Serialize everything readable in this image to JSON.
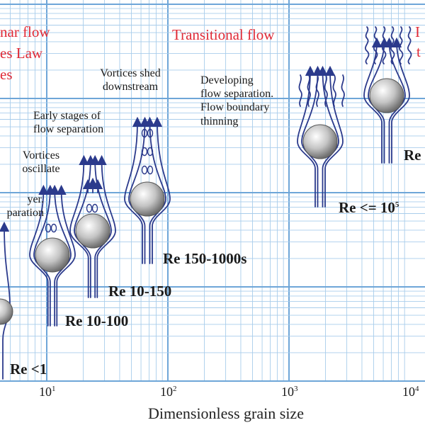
{
  "regimes": {
    "laminar_line1": "nar flow",
    "laminar_line2": "es Law",
    "laminar_line3": "es",
    "transitional": "Transitional flow",
    "edge_r1": "I",
    "edge_r2": "t"
  },
  "notes": {
    "vortices_shed_1": "Vortices shed",
    "vortices_shed_2": "downstream",
    "developing_1": "Developing",
    "developing_2": "flow separation.",
    "boundary_1": "Flow boundary",
    "boundary_2": "thinning",
    "early_1": "Early stages of",
    "early_2": "flow separation",
    "oscillate_1": "Vortices",
    "oscillate_2": "oscillate",
    "partial_1": "yer.",
    "partial_2": "paration"
  },
  "reynolds": {
    "re_lt1": "Re <1",
    "re_10_100": "Re 10-100",
    "re_10_150": "Re 10-150",
    "re_150_1000s": "Re 150-1000s",
    "re_le_base": "Re <= 10",
    "re_le_exp": "5",
    "re_partial": "Re"
  },
  "axis": {
    "xlabel": "Dimensionless grain size",
    "ticks": [
      {
        "base": "10",
        "exp": "1"
      },
      {
        "base": "10",
        "exp": "2"
      },
      {
        "base": "10",
        "exp": "3"
      },
      {
        "base": "10",
        "exp": "4"
      }
    ]
  },
  "colors": {
    "grid": "#6ea6d8",
    "grid_minor": "#a9cdeb",
    "streamline": "#2b3a8c",
    "regime_text": "#e02a36"
  }
}
